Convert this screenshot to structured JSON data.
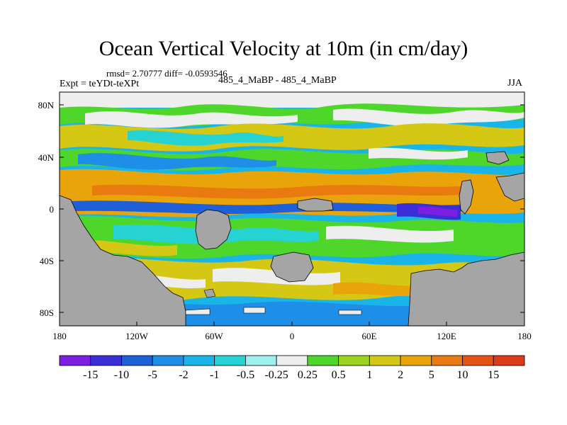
{
  "header": {
    "title": "Ocean Vertical Velocity at 10m (in cm/day)",
    "stats": "rmsd= 2.70777 diff= -0.0593546",
    "experiment": "Expt = teYDt-teXPt",
    "cases": "485_4_MaBP - 485_4_MaBP",
    "season": "JJA"
  },
  "axes": {
    "y_ticks": [
      "80N",
      "40N",
      "0",
      "40S",
      "80S"
    ],
    "x_ticks": [
      "180",
      "120W",
      "60W",
      "0",
      "60E",
      "120E",
      "180"
    ]
  },
  "colorbar": {
    "colors": [
      "#7b1fe0",
      "#3a2fd6",
      "#1f5fd8",
      "#1e8ee6",
      "#19b4e8",
      "#26d2d2",
      "#9ef0ee",
      "#eeeeee",
      "#4fd62b",
      "#9ad21c",
      "#d4c814",
      "#e9a40a",
      "#e97a10",
      "#e45414",
      "#dc3a1a"
    ],
    "labels": [
      "-15",
      "-10",
      "-5",
      "-2",
      "-1",
      "-0.5",
      "-0.25",
      "0.25",
      "0.5",
      "1",
      "2",
      "5",
      "10",
      "15"
    ]
  },
  "legend_colors": {
    "land": "#a5a5a5",
    "ice": "#eeeeee"
  }
}
